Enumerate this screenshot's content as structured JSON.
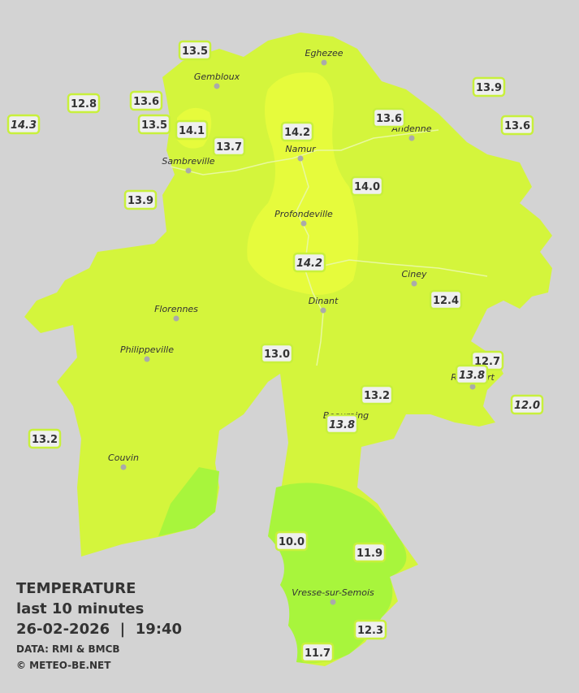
{
  "legend": {
    "title": "TEMPERATURE",
    "period": "last 10 minutes",
    "datetime": "26-02-2026  |  19:40",
    "source": "DATA: RMI & BMCB",
    "copyright": "© METEO-BE.NET"
  },
  "towns": [
    {
      "label": "Eghezee"
    },
    {
      "label": "Gembloux"
    },
    {
      "label": "Andenne"
    },
    {
      "label": "Namur"
    },
    {
      "label": "Sambreville"
    },
    {
      "label": "Profondeville"
    },
    {
      "label": "Ciney"
    },
    {
      "label": "Dinant"
    },
    {
      "label": "Florennes"
    },
    {
      "label": "Philippeville"
    },
    {
      "label": "Rochefort"
    },
    {
      "label": "Beauraing"
    },
    {
      "label": "Couvin"
    },
    {
      "label": "Vresse-sur-Semois"
    }
  ],
  "stations": [
    {
      "label": "13.5",
      "italic": false
    },
    {
      "label": "12.8",
      "italic": false
    },
    {
      "label": "13.6",
      "italic": false
    },
    {
      "label": "14.3",
      "italic": true
    },
    {
      "label": "13.5",
      "italic": false
    },
    {
      "label": "14.1",
      "italic": false
    },
    {
      "label": "13.7",
      "italic": false
    },
    {
      "label": "14.2",
      "italic": false
    },
    {
      "label": "13.6",
      "italic": false
    },
    {
      "label": "13.9",
      "italic": false
    },
    {
      "label": "13.6",
      "italic": false
    },
    {
      "label": "13.9",
      "italic": false
    },
    {
      "label": "14.0",
      "italic": false
    },
    {
      "label": "14.2",
      "italic": true
    },
    {
      "label": "12.4",
      "italic": false
    },
    {
      "label": "13.0",
      "italic": false
    },
    {
      "label": "12.7",
      "italic": false
    },
    {
      "label": "13.8",
      "italic": true
    },
    {
      "label": "12.0",
      "italic": true
    },
    {
      "label": "13.2",
      "italic": false
    },
    {
      "label": "13.8",
      "italic": true
    },
    {
      "label": "13.2",
      "italic": false
    },
    {
      "label": "10.0",
      "italic": false
    },
    {
      "label": "11.9",
      "italic": false
    },
    {
      "label": "12.3",
      "italic": false
    },
    {
      "label": "11.7",
      "italic": false
    }
  ]
}
